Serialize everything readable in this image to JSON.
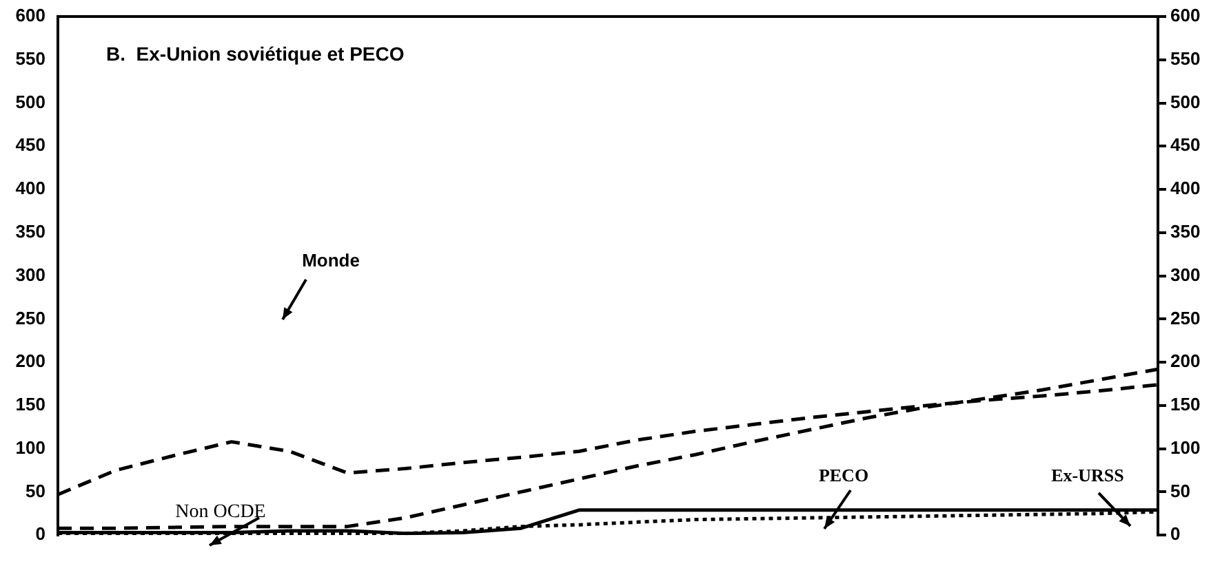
{
  "chart_data": {
    "type": "line",
    "title": "B.  Ex-Union soviétique et PECO",
    "categories": [
      null,
      null,
      null,
      null,
      null,
      null,
      null,
      null,
      null,
      null,
      null,
      null,
      null,
      null,
      null,
      null,
      null,
      null,
      null,
      null
    ],
    "series": [
      {
        "color": "#000000",
        "line_style": "dashed",
        "values": [
          47,
          75,
          92,
          108,
          97,
          72,
          77,
          84,
          90,
          97,
          110,
          120,
          128,
          136,
          143,
          150,
          156,
          161,
          167,
          174
        ]
      },
      {
        "color": "#000000",
        "line_style": "dashed",
        "values": [
          8,
          8,
          9,
          10,
          10,
          10,
          20,
          35,
          50,
          65,
          80,
          93,
          108,
          122,
          136,
          148,
          158,
          168,
          180,
          192
        ]
      },
      {
        "color": "#000000",
        "line_style": "solid",
        "values": [
          3,
          3,
          3,
          3,
          5,
          5,
          2,
          3,
          8,
          29,
          29,
          29,
          29,
          29,
          29,
          29,
          29,
          29,
          29,
          29
        ]
      },
      {
        "color": "#000000",
        "line_style": "dotted",
        "values": [
          2,
          2,
          2,
          2,
          2,
          2,
          2,
          5,
          10,
          12,
          15,
          18,
          19,
          20,
          21,
          22,
          23,
          24,
          25,
          27
        ]
      }
    ],
    "annotations": [
      "Monde",
      "Non OCDE",
      "PECO",
      "Ex-URSS"
    ],
    "ylim": [
      0,
      600
    ],
    "yticks": [
      0,
      50,
      100,
      150,
      200,
      250,
      300,
      350,
      400,
      450,
      500,
      550,
      600
    ],
    "y2lim": [
      0,
      600
    ],
    "y2ticks": [
      0,
      50,
      100,
      150,
      200,
      250,
      300,
      350,
      400,
      450,
      500,
      550,
      600
    ],
    "grid": false,
    "legend": false,
    "marker": "none"
  }
}
